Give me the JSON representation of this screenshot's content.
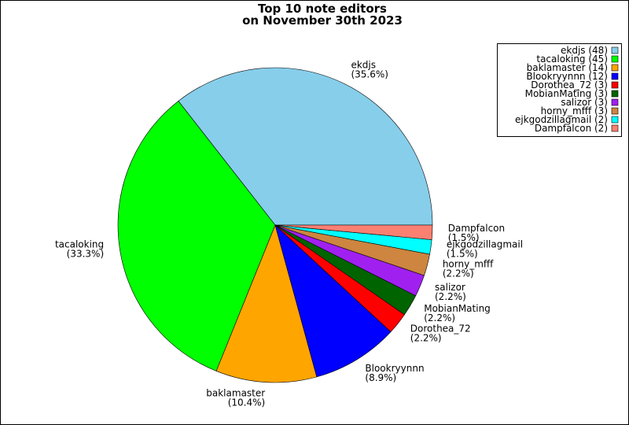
{
  "chart_data": {
    "type": "pie",
    "title": [
      "Top 10 note editors",
      "on November 30th 2023"
    ],
    "categories": [
      "ekdjs",
      "tacaloking",
      "baklamaster",
      "Blookryynnn",
      "Dorothea_72",
      "MobianMating",
      "salizor",
      "horny_mfff",
      "ejkgodzillagmail",
      "Dampfalcon"
    ],
    "values": [
      48,
      45,
      14,
      12,
      3,
      3,
      3,
      3,
      2,
      2
    ],
    "value_labels": [
      "(35.6%)",
      "(33.3%)",
      "(10.4%)",
      "(8.9%)",
      "(2.2%)",
      "(2.2%)",
      "(2.2%)",
      "(2.2%)",
      "(1.5%)",
      "(1.5%)"
    ],
    "legend_labels": [
      "ekdjs (48)",
      "tacaloking (45)",
      "baklamaster (14)",
      "Blookryynnn (12)",
      "Dorothea_72 (3)",
      "MobianMating (3)",
      "salizor (3)",
      "horny_mfff (3)",
      "ejkgodzillagmail (2)",
      "Dampfalcon (2)"
    ],
    "colors": [
      "#87ceeb",
      "#00ff00",
      "#ffa500",
      "#0000ff",
      "#ff0000",
      "#006400",
      "#a020f0",
      "#cd853f",
      "#00ffff",
      "#fa8072"
    ],
    "legend": "upper right"
  }
}
